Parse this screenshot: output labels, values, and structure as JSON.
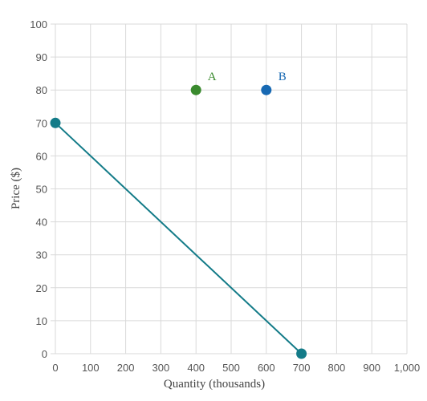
{
  "chart_data": {
    "type": "scatter",
    "xlabel": "Quantity (thousands)",
    "ylabel": "Price ($)",
    "xlim": [
      0,
      1000
    ],
    "ylim": [
      0,
      100
    ],
    "x_ticks": [
      0,
      100,
      200,
      300,
      400,
      500,
      600,
      700,
      800,
      900,
      1000
    ],
    "x_tick_labels": [
      "0",
      "100",
      "200",
      "300",
      "400",
      "500",
      "600",
      "700",
      "800",
      "900",
      "1,000"
    ],
    "y_ticks": [
      0,
      10,
      20,
      30,
      40,
      50,
      60,
      70,
      80,
      90,
      100
    ],
    "y_tick_labels": [
      "0",
      "10",
      "20",
      "30",
      "40",
      "50",
      "60",
      "70",
      "80",
      "90",
      "100"
    ],
    "grid": true,
    "line": {
      "color": "#137b88",
      "points": [
        {
          "x": 0,
          "y": 70
        },
        {
          "x": 700,
          "y": 0
        }
      ]
    },
    "points": [
      {
        "label": "A",
        "x": 400,
        "y": 80,
        "color": "#3a8a2e"
      },
      {
        "label": "B",
        "x": 600,
        "y": 80,
        "color": "#1769b3"
      }
    ]
  }
}
